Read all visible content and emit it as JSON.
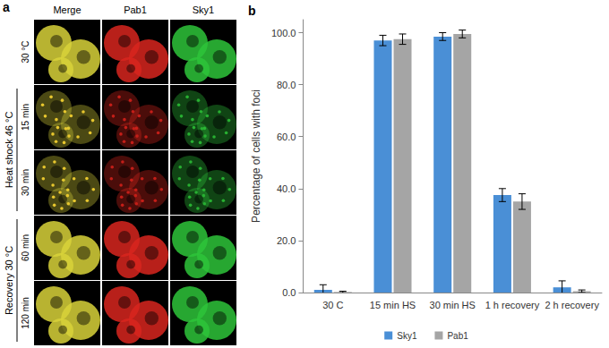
{
  "panel_a": {
    "label": "a",
    "columns": [
      "Merge",
      "Pab1",
      "Sky1"
    ],
    "rows": [
      "30 °C",
      "15 min",
      "30 min",
      "60 min",
      "120 min"
    ],
    "groups": [
      {
        "label": "Heat shock 46 °C",
        "rows": [
          "15 min",
          "30 min"
        ]
      },
      {
        "label": "Recovery 30 °C",
        "rows": [
          "60 min",
          "120 min"
        ]
      }
    ]
  },
  "chart_data": {
    "type": "bar",
    "panel_label": "b",
    "categories": [
      "30 C",
      "15 min HS",
      "30 min HS",
      "1 h recovery",
      "2 h recovery"
    ],
    "series": [
      {
        "name": "Sky1",
        "color": "#4a8fd6",
        "values": [
          1.0,
          97.0,
          98.5,
          37.5,
          2.0
        ],
        "error": [
          2.0,
          2.0,
          1.5,
          2.5,
          2.5
        ]
      },
      {
        "name": "Pab1",
        "color": "#a5a5a5",
        "values": [
          0.2,
          97.5,
          99.5,
          35.0,
          0.5
        ],
        "error": [
          0.3,
          2.0,
          1.5,
          3.0,
          0.5
        ]
      }
    ],
    "ylabel": "Percentage of cells with foci",
    "ylim": [
      0,
      105
    ],
    "yticks": [
      {
        "value": 0,
        "label": "0.0"
      },
      {
        "value": 20,
        "label": "20.0"
      },
      {
        "value": 40,
        "label": "40.0"
      },
      {
        "value": 60,
        "label": "60.0"
      },
      {
        "value": 80,
        "label": "80.0"
      },
      {
        "value": 100,
        "label": "100.0"
      }
    ],
    "grid": false,
    "legend": "bottom"
  }
}
